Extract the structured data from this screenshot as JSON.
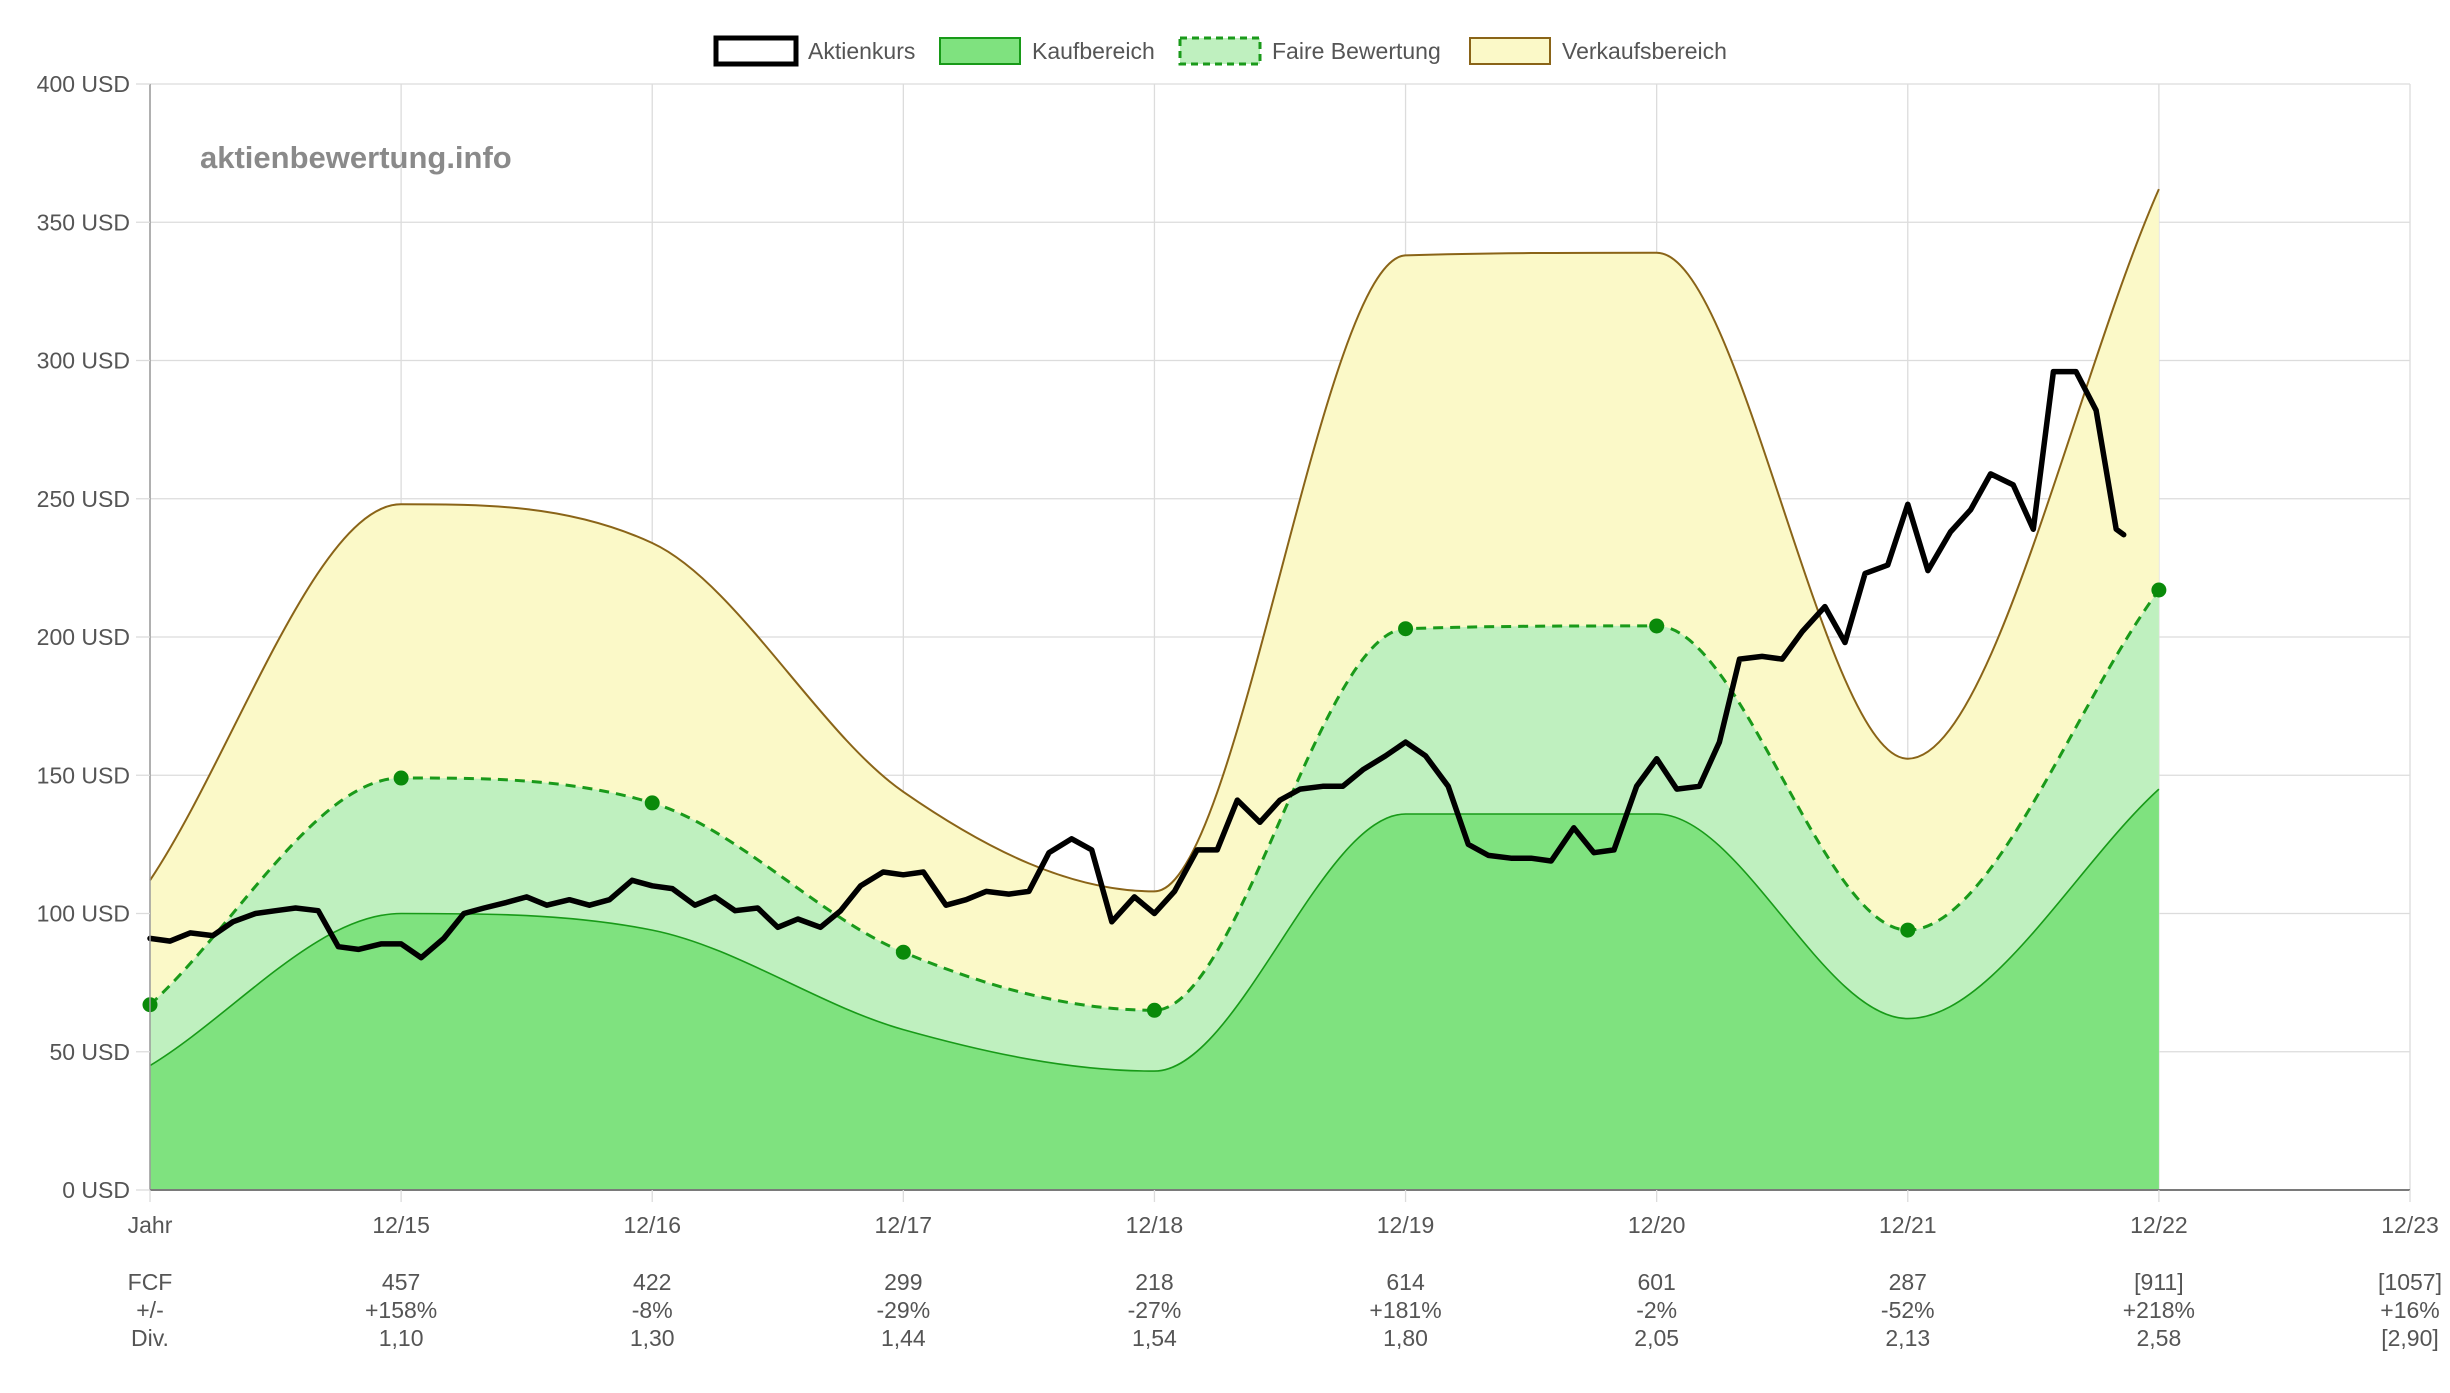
{
  "watermark": "aktienbewertung.info",
  "legend": [
    {
      "key": "price",
      "label": "Aktienkurs"
    },
    {
      "key": "buy",
      "label": "Kaufbereich"
    },
    {
      "key": "fair",
      "label": "Faire Bewertung"
    },
    {
      "key": "sell",
      "label": "Verkaufsbereich"
    }
  ],
  "colors": {
    "price": "#000000",
    "buy_fill": "#7fe27f",
    "buy_line": "#189a18",
    "fair_fill": "#bff0bf",
    "fair_line": "#1a9a1a",
    "fair_point": "#0a8a0a",
    "sell_fill": "#fbf9c8",
    "sell_line": "#8a6418",
    "grid": "#dcdcdc",
    "axis": "#555555",
    "watermark": "#8a8a8a"
  },
  "chart_data": {
    "type": "area",
    "xlabel": "Jahr",
    "y_unit": "USD",
    "ylim": [
      0,
      400
    ],
    "y_ticks": [
      0,
      50,
      100,
      150,
      200,
      250,
      300,
      350,
      400
    ],
    "x_range": [
      2014,
      2023
    ],
    "x_ticks": [
      {
        "x": 2014,
        "label": "Jahr"
      },
      {
        "x": 2015,
        "label": "12/15"
      },
      {
        "x": 2016,
        "label": "12/16"
      },
      {
        "x": 2017,
        "label": "12/17"
      },
      {
        "x": 2018,
        "label": "12/18"
      },
      {
        "x": 2019,
        "label": "12/19"
      },
      {
        "x": 2020,
        "label": "12/20"
      },
      {
        "x": 2021,
        "label": "12/21"
      },
      {
        "x": 2022,
        "label": "12/22"
      },
      {
        "x": 2023,
        "label": "12/23"
      }
    ],
    "grid": true,
    "legend_position": "top",
    "fair_value": {
      "x": [
        2014,
        2015,
        2016,
        2017,
        2018,
        2019,
        2020,
        2021,
        2022
      ],
      "y": [
        67,
        149,
        140,
        86,
        65,
        203,
        204,
        94,
        217
      ]
    },
    "buy_zone_top": {
      "x": [
        2014,
        2015,
        2016,
        2017,
        2018,
        2019,
        2020,
        2021,
        2022
      ],
      "y": [
        45,
        100,
        94,
        58,
        43,
        136,
        136,
        62,
        145
      ]
    },
    "sell_zone_top": {
      "x": [
        2014,
        2015,
        2016,
        2017,
        2018,
        2019,
        2020,
        2021,
        2022
      ],
      "y": [
        112,
        248,
        234,
        144,
        108,
        338,
        339,
        156,
        362
      ]
    },
    "stock_price": [
      [
        2014.0,
        91
      ],
      [
        2014.08,
        90
      ],
      [
        2014.16,
        93
      ],
      [
        2014.25,
        92
      ],
      [
        2014.33,
        97
      ],
      [
        2014.42,
        100
      ],
      [
        2014.5,
        101
      ],
      [
        2014.58,
        102
      ],
      [
        2014.67,
        101
      ],
      [
        2014.75,
        88
      ],
      [
        2014.83,
        87
      ],
      [
        2014.92,
        89
      ],
      [
        2015.0,
        89
      ],
      [
        2015.08,
        84
      ],
      [
        2015.17,
        91
      ],
      [
        2015.25,
        100
      ],
      [
        2015.33,
        102
      ],
      [
        2015.42,
        104
      ],
      [
        2015.5,
        106
      ],
      [
        2015.58,
        103
      ],
      [
        2015.67,
        105
      ],
      [
        2015.75,
        103
      ],
      [
        2015.83,
        105
      ],
      [
        2015.92,
        112
      ],
      [
        2016.0,
        110
      ],
      [
        2016.08,
        109
      ],
      [
        2016.17,
        103
      ],
      [
        2016.25,
        106
      ],
      [
        2016.33,
        101
      ],
      [
        2016.42,
        102
      ],
      [
        2016.5,
        95
      ],
      [
        2016.58,
        98
      ],
      [
        2016.67,
        95
      ],
      [
        2016.75,
        101
      ],
      [
        2016.83,
        110
      ],
      [
        2016.92,
        115
      ],
      [
        2017.0,
        114
      ],
      [
        2017.08,
        115
      ],
      [
        2017.17,
        103
      ],
      [
        2017.25,
        105
      ],
      [
        2017.33,
        108
      ],
      [
        2017.42,
        107
      ],
      [
        2017.5,
        108
      ],
      [
        2017.58,
        122
      ],
      [
        2017.67,
        127
      ],
      [
        2017.75,
        123
      ],
      [
        2017.83,
        97
      ],
      [
        2017.92,
        106
      ],
      [
        2018.0,
        100
      ],
      [
        2018.08,
        108
      ],
      [
        2018.17,
        123
      ],
      [
        2018.25,
        123
      ],
      [
        2018.33,
        141
      ],
      [
        2018.42,
        133
      ],
      [
        2018.5,
        141
      ],
      [
        2018.58,
        145
      ],
      [
        2018.67,
        146
      ],
      [
        2018.75,
        146
      ],
      [
        2018.83,
        152
      ],
      [
        2018.92,
        157
      ],
      [
        2019.0,
        162
      ],
      [
        2019.08,
        157
      ],
      [
        2019.17,
        146
      ],
      [
        2019.25,
        125
      ],
      [
        2019.33,
        121
      ],
      [
        2019.42,
        120
      ],
      [
        2019.5,
        120
      ],
      [
        2019.58,
        119
      ],
      [
        2019.67,
        131
      ],
      [
        2019.75,
        122
      ],
      [
        2019.83,
        123
      ],
      [
        2019.92,
        146
      ],
      [
        2020.0,
        156
      ],
      [
        2020.08,
        145
      ],
      [
        2020.17,
        146
      ],
      [
        2020.25,
        162
      ],
      [
        2020.33,
        192
      ],
      [
        2020.42,
        193
      ],
      [
        2020.5,
        192
      ],
      [
        2020.58,
        202
      ],
      [
        2020.67,
        211
      ],
      [
        2020.75,
        198
      ],
      [
        2020.83,
        223
      ],
      [
        2020.92,
        226
      ],
      [
        2021.0,
        248
      ],
      [
        2021.08,
        224
      ],
      [
        2021.17,
        238
      ],
      [
        2021.25,
        246
      ],
      [
        2021.33,
        259
      ],
      [
        2021.42,
        255
      ],
      [
        2021.5,
        239
      ],
      [
        2021.58,
        296
      ],
      [
        2021.67,
        296
      ],
      [
        2021.75,
        282
      ],
      [
        2021.83,
        239
      ],
      [
        2021.86,
        237
      ]
    ]
  },
  "table": {
    "row_labels": [
      "FCF",
      "+/-",
      "Div."
    ],
    "columns": [
      {
        "x": 2015,
        "fcf": "457",
        "change": "+158%",
        "div": "1,10"
      },
      {
        "x": 2016,
        "fcf": "422",
        "change": "-8%",
        "div": "1,30"
      },
      {
        "x": 2017,
        "fcf": "299",
        "change": "-29%",
        "div": "1,44"
      },
      {
        "x": 2018,
        "fcf": "218",
        "change": "-27%",
        "div": "1,54"
      },
      {
        "x": 2019,
        "fcf": "614",
        "change": "+181%",
        "div": "1,80"
      },
      {
        "x": 2020,
        "fcf": "601",
        "change": "-2%",
        "div": "2,05"
      },
      {
        "x": 2021,
        "fcf": "287",
        "change": "-52%",
        "div": "2,13"
      },
      {
        "x": 2022,
        "fcf": "[911]",
        "change": "+218%",
        "div": "2,58"
      },
      {
        "x": 2023,
        "fcf": "[1057]",
        "change": "+16%",
        "div": "[2,90]"
      }
    ]
  }
}
